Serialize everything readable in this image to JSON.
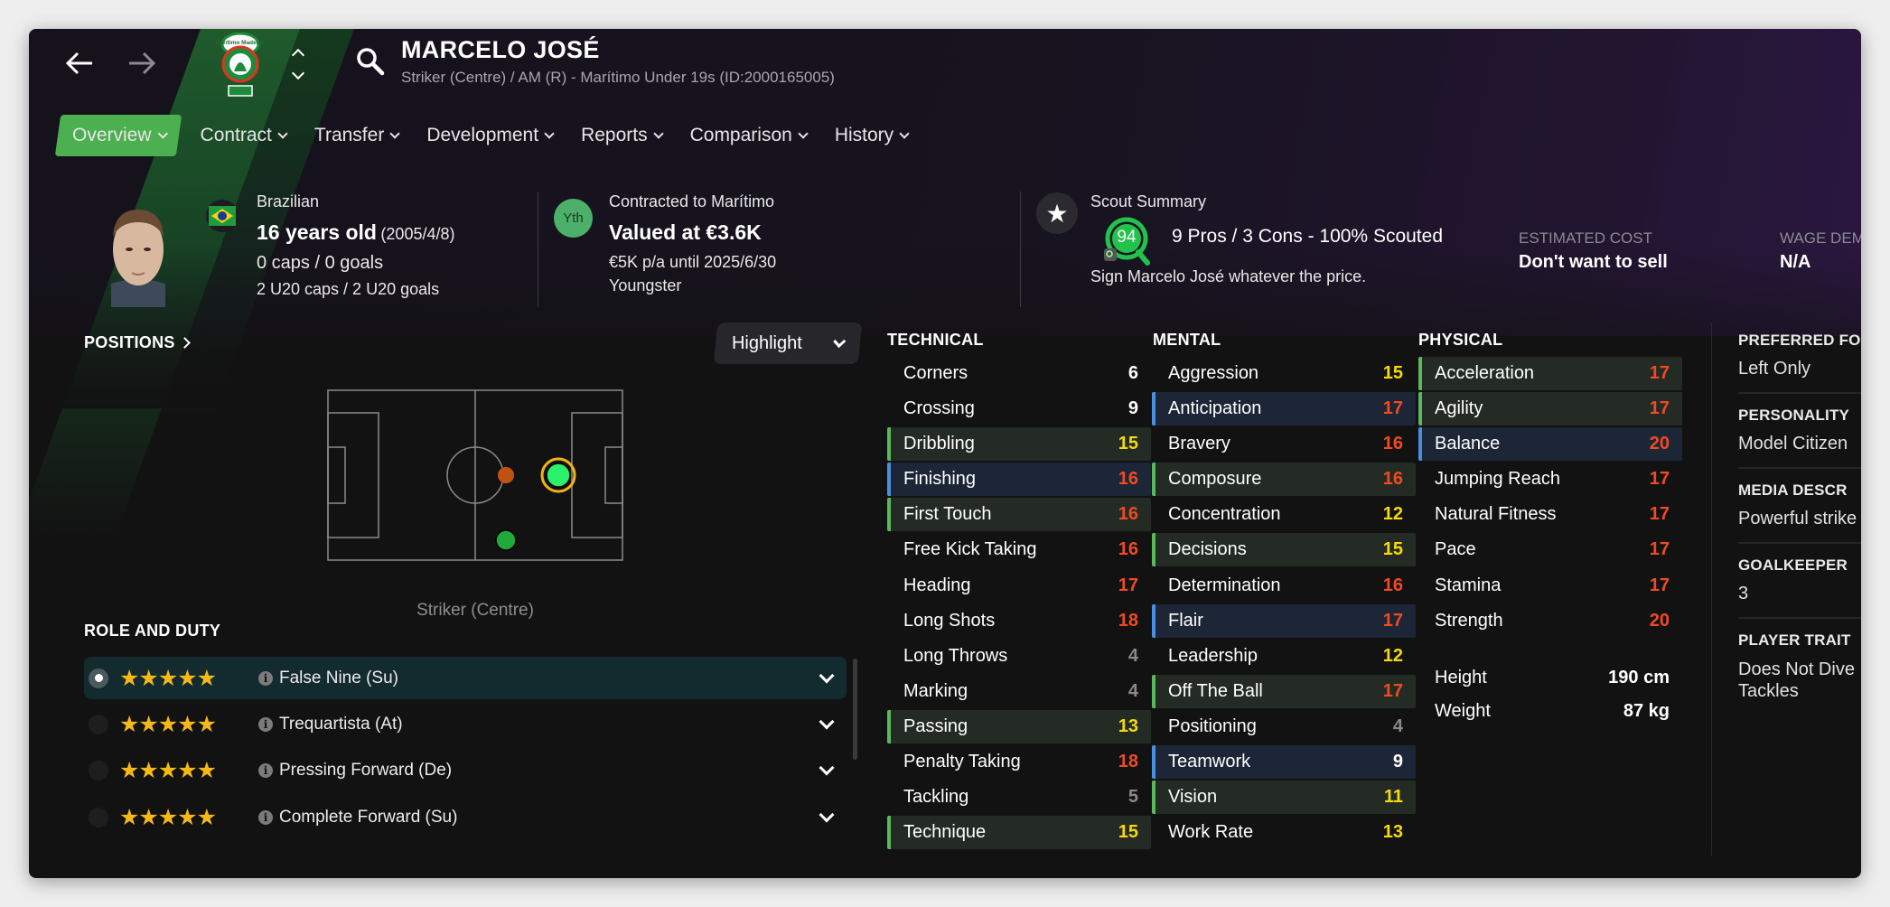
{
  "header": {
    "player_name": "MARCELO JOSÉ",
    "subtitle": "Striker (Centre) / AM (R) - Marítimo Under 19s (ID:2000165005)",
    "club_badge_text": "Marítimo Madeira"
  },
  "nav": {
    "tabs": [
      {
        "label": "Overview",
        "active": true
      },
      {
        "label": "Contract"
      },
      {
        "label": "Transfer"
      },
      {
        "label": "Development"
      },
      {
        "label": "Reports"
      },
      {
        "label": "Comparison"
      },
      {
        "label": "History"
      }
    ]
  },
  "bio": {
    "nationality": "Brazilian",
    "age": "16 years old",
    "dob": "(2005/4/8)",
    "caps": "0 caps / 0 goals",
    "u20_caps": "2 U20 caps / 2 U20 goals"
  },
  "contract": {
    "badge": "Yth",
    "title": "Contracted to Marítimo",
    "value": "Valued at €3.6K",
    "wage": "€5K p/a until 2025/6/30",
    "status": "Youngster"
  },
  "scout": {
    "title": "Scout Summary",
    "rating": "94",
    "summary": "9 Pros / 3 Cons - 100% Scouted",
    "recommendation": "Sign Marcelo José whatever the price.",
    "estimated_cost_label": "ESTIMATED COST",
    "estimated_cost": "Don't want to sell",
    "wage_demand_label": "WAGE DEM",
    "wage_demand": "N/A"
  },
  "positions": {
    "title": "POSITIONS",
    "highlight_label": "Highlight",
    "selected_position": "Striker (Centre)"
  },
  "roles": {
    "title": "ROLE AND DUTY",
    "items": [
      {
        "name": "False Nine (Su)",
        "stars": 5,
        "selected": true
      },
      {
        "name": "Trequartista (At)",
        "stars": 5
      },
      {
        "name": "Pressing Forward (De)",
        "stars": 5
      },
      {
        "name": "Complete Forward (Su)",
        "stars": 5
      }
    ]
  },
  "attributes": {
    "technical": {
      "title": "TECHNICAL",
      "items": [
        {
          "name": "Corners",
          "value": 6
        },
        {
          "name": "Crossing",
          "value": 9
        },
        {
          "name": "Dribbling",
          "value": 15,
          "key": "green"
        },
        {
          "name": "Finishing",
          "value": 16,
          "key": "blue"
        },
        {
          "name": "First Touch",
          "value": 16,
          "key": "green"
        },
        {
          "name": "Free Kick Taking",
          "value": 16
        },
        {
          "name": "Heading",
          "value": 17
        },
        {
          "name": "Long Shots",
          "value": 18
        },
        {
          "name": "Long Throws",
          "value": 4
        },
        {
          "name": "Marking",
          "value": 4
        },
        {
          "name": "Passing",
          "value": 13,
          "key": "green"
        },
        {
          "name": "Penalty Taking",
          "value": 18
        },
        {
          "name": "Tackling",
          "value": 5
        },
        {
          "name": "Technique",
          "value": 15,
          "key": "green"
        }
      ]
    },
    "mental": {
      "title": "MENTAL",
      "items": [
        {
          "name": "Aggression",
          "value": 15
        },
        {
          "name": "Anticipation",
          "value": 17,
          "key": "blue"
        },
        {
          "name": "Bravery",
          "value": 16
        },
        {
          "name": "Composure",
          "value": 16,
          "key": "green"
        },
        {
          "name": "Concentration",
          "value": 12
        },
        {
          "name": "Decisions",
          "value": 15,
          "key": "green"
        },
        {
          "name": "Determination",
          "value": 16
        },
        {
          "name": "Flair",
          "value": 17,
          "key": "blue"
        },
        {
          "name": "Leadership",
          "value": 12
        },
        {
          "name": "Off The Ball",
          "value": 17,
          "key": "green"
        },
        {
          "name": "Positioning",
          "value": 4
        },
        {
          "name": "Teamwork",
          "value": 9,
          "key": "blue"
        },
        {
          "name": "Vision",
          "value": 11,
          "key": "green"
        },
        {
          "name": "Work Rate",
          "value": 13
        }
      ]
    },
    "physical": {
      "title": "PHYSICAL",
      "items": [
        {
          "name": "Acceleration",
          "value": 17,
          "key": "green"
        },
        {
          "name": "Agility",
          "value": 17,
          "key": "green"
        },
        {
          "name": "Balance",
          "value": 20,
          "key": "blue"
        },
        {
          "name": "Jumping Reach",
          "value": 17
        },
        {
          "name": "Natural Fitness",
          "value": 17
        },
        {
          "name": "Pace",
          "value": 17
        },
        {
          "name": "Stamina",
          "value": 17
        },
        {
          "name": "Strength",
          "value": 20
        }
      ]
    },
    "height_label": "Height",
    "height": "190 cm",
    "weight_label": "Weight",
    "weight": "87 kg"
  },
  "details": [
    {
      "label": "PREFERRED FO",
      "value": "Left Only"
    },
    {
      "label": "PERSONALITY",
      "value": "Model Citizen"
    },
    {
      "label": "MEDIA DESCR",
      "value": "Powerful strike"
    },
    {
      "label": "GOALKEEPER",
      "value": "3"
    },
    {
      "label": "PLAYER TRAIT",
      "value": "Does Not Dive Tackles"
    }
  ],
  "colors": {
    "accent": "#4caf50",
    "low": "#8a8a8a",
    "mid": "#ffffff",
    "good": "#f5d90a",
    "high": "#f04a23",
    "key_green": "#5cb85c",
    "key_blue": "#4a90e2",
    "stars": "#f5b816"
  }
}
